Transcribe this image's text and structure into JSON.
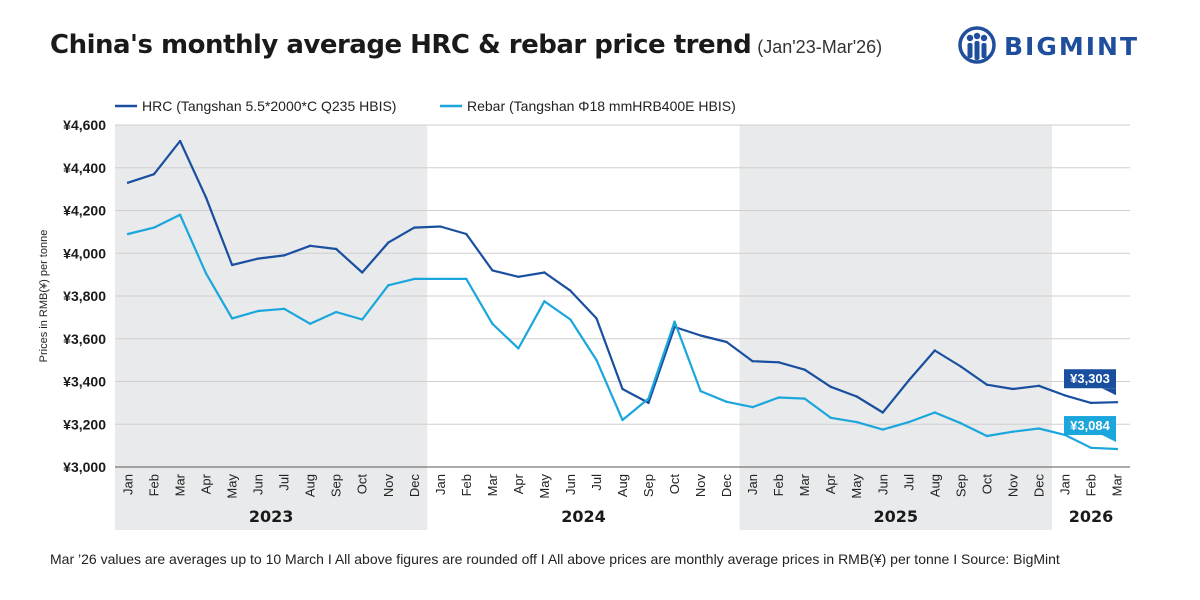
{
  "title": "China's monthly average HRC & rebar price trend",
  "subtitle": "(Jan'23-Mar'26)",
  "logo": {
    "text": "BIGMINT",
    "icon": "bigmint-people-icon",
    "color": "#1f4e9c"
  },
  "footer": "Mar ’26 values are averages up to 10 March  I   All above figures are rounded off   I  All above prices are monthly average prices in RMB(¥) per tonne  I  Source: BigMint",
  "chart_data": {
    "type": "line",
    "title": "China's monthly average HRC & rebar price trend",
    "xlabel": "",
    "ylabel": "Prices in RMB(¥) per tonne",
    "ylim": [
      3000,
      4600
    ],
    "yticks": [
      3000,
      3200,
      3400,
      3600,
      3800,
      4000,
      4200,
      4400,
      4600
    ],
    "ytick_labels": [
      "¥3,000",
      "¥3,200",
      "¥3,400",
      "¥3,600",
      "¥3,800",
      "¥4,000",
      "¥4,200",
      "¥4,400",
      "¥4,600"
    ],
    "grid": true,
    "legend_position": "top-left",
    "categories": [
      "Jan",
      "Feb",
      "Mar",
      "Apr",
      "May",
      "Jun",
      "Jul",
      "Aug",
      "Sep",
      "Oct",
      "Nov",
      "Dec",
      "Jan",
      "Feb",
      "Mar",
      "Apr",
      "May",
      "Jun",
      "Jul",
      "Aug",
      "Sep",
      "Oct",
      "Nov",
      "Dec",
      "Jan",
      "Feb",
      "Mar",
      "Apr",
      "May",
      "Jun",
      "Jul",
      "Aug",
      "Sep",
      "Oct",
      "Nov",
      "Dec",
      "Jan",
      "Feb",
      "Mar"
    ],
    "year_groups": [
      {
        "label": "2023",
        "start": 0,
        "end": 11,
        "shaded": true
      },
      {
        "label": "2024",
        "start": 12,
        "end": 23,
        "shaded": false
      },
      {
        "label": "2025",
        "start": 24,
        "end": 35,
        "shaded": true
      },
      {
        "label": "2026",
        "start": 36,
        "end": 38,
        "shaded": false
      }
    ],
    "series": [
      {
        "name": "HRC (Tangshan 5.5*2000*C Q235 HBIS)",
        "color": "#1a4fa0",
        "values": [
          4330,
          4370,
          4525,
          4260,
          3945,
          3975,
          3990,
          4035,
          4020,
          3910,
          4050,
          4120,
          4125,
          4090,
          3920,
          3890,
          3910,
          3825,
          3695,
          3365,
          3300,
          3655,
          3615,
          3585,
          3495,
          3490,
          3455,
          3375,
          3330,
          3255,
          3405,
          3545,
          3470,
          3385,
          3365,
          3380,
          3335,
          3300,
          3303
        ],
        "end_label": "¥3,303"
      },
      {
        "name": "Rebar (Tangshan Φ18 mmHRB400E HBIS)",
        "color": "#1ba6dc",
        "values": [
          4090,
          4120,
          4180,
          3905,
          3695,
          3730,
          3740,
          3670,
          3725,
          3690,
          3850,
          3880,
          3880,
          3880,
          3670,
          3555,
          3775,
          3690,
          3500,
          3220,
          3320,
          3680,
          3355,
          3305,
          3280,
          3325,
          3320,
          3230,
          3210,
          3175,
          3210,
          3255,
          3205,
          3145,
          3165,
          3180,
          3150,
          3090,
          3084
        ],
        "end_label": "¥3,084"
      }
    ]
  }
}
